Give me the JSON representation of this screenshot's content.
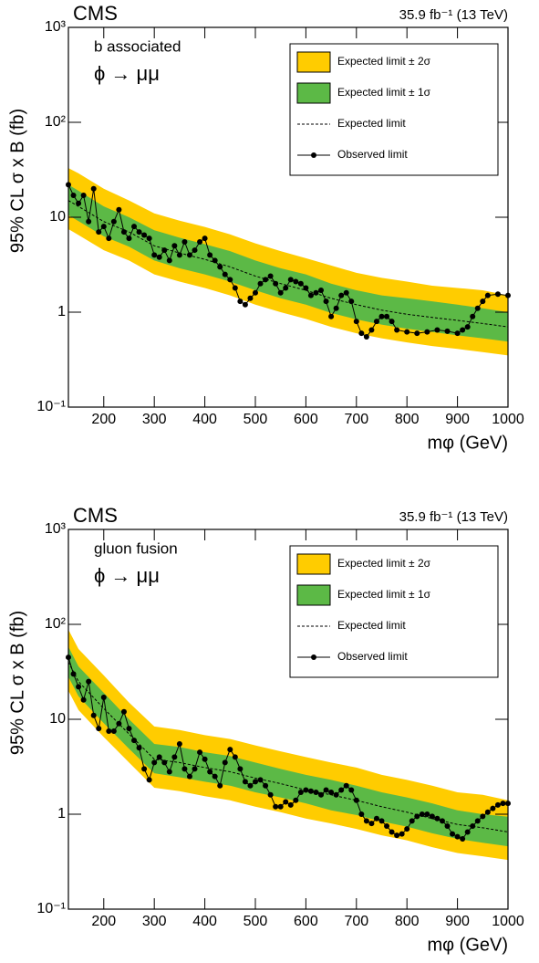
{
  "chart_data": [
    {
      "type": "line",
      "title": "CMS",
      "subtitle": "35.9 fb⁻¹ (13 TeV)",
      "annotations": [
        "b associated",
        "ϕ → μμ"
      ],
      "x_label": "mφ (GeV)",
      "y_label": "95% CL σ x B (fb)",
      "log_y": true,
      "grid": false,
      "legend": "top right",
      "xlim": [
        130,
        1000
      ],
      "xticks": [
        200,
        300,
        400,
        500,
        600,
        700,
        800,
        900,
        1000
      ],
      "ylim": [
        0.1,
        1000
      ],
      "yticks": [
        {
          "value": 0.1,
          "label": "10⁻¹"
        },
        1,
        10,
        {
          "value": 100,
          "label": "10²"
        },
        {
          "value": 1000,
          "label": "10³"
        }
      ],
      "x": [
        130,
        150,
        200,
        250,
        300,
        350,
        400,
        450,
        500,
        550,
        600,
        650,
        700,
        750,
        800,
        850,
        900,
        950,
        1000
      ],
      "series": [
        {
          "name": "Expected limit ± 2σ",
          "color": "#ffcc00",
          "lower": [
            7.5,
            6.5,
            4.5,
            3.5,
            2.5,
            2.1,
            1.8,
            1.5,
            1.2,
            1.0,
            0.85,
            0.7,
            0.6,
            0.53,
            0.48,
            0.44,
            0.41,
            0.38,
            0.35
          ],
          "upper": [
            33,
            29,
            20,
            15,
            11,
            9.2,
            7.9,
            6.6,
            5.3,
            4.4,
            3.7,
            3.1,
            2.6,
            2.3,
            2.1,
            1.9,
            1.8,
            1.7,
            1.5
          ]
        },
        {
          "name": "Expected limit ± 1σ",
          "color": "#5cb946",
          "lower": [
            10.5,
            9.1,
            6.3,
            4.9,
            3.5,
            2.9,
            2.5,
            2.1,
            1.7,
            1.4,
            1.2,
            0.98,
            0.84,
            0.74,
            0.67,
            0.62,
            0.57,
            0.53,
            0.49
          ],
          "upper": [
            22,
            19,
            13,
            10,
            7.3,
            6.1,
            5.2,
            4.4,
            3.5,
            2.9,
            2.5,
            2.0,
            1.7,
            1.5,
            1.4,
            1.3,
            1.2,
            1.1,
            1.0
          ]
        },
        {
          "name": "Expected limit",
          "color": "#000000",
          "style": "dashed",
          "values": [
            15,
            13,
            9,
            7,
            5,
            4.2,
            3.6,
            3,
            2.4,
            2,
            1.7,
            1.4,
            1.2,
            1.05,
            0.95,
            0.88,
            0.82,
            0.76,
            0.7
          ]
        },
        {
          "name": "Observed limit",
          "color": "#000000",
          "markers": true,
          "x": [
            130,
            140,
            150,
            160,
            170,
            180,
            190,
            200,
            210,
            220,
            230,
            240,
            250,
            260,
            270,
            280,
            290,
            300,
            310,
            320,
            330,
            340,
            350,
            360,
            370,
            380,
            390,
            400,
            410,
            420,
            430,
            440,
            450,
            460,
            470,
            480,
            490,
            500,
            510,
            520,
            530,
            540,
            550,
            560,
            570,
            580,
            590,
            600,
            610,
            620,
            630,
            640,
            650,
            660,
            670,
            680,
            690,
            700,
            710,
            720,
            730,
            740,
            750,
            760,
            770,
            780,
            800,
            820,
            840,
            860,
            880,
            900,
            910,
            920,
            930,
            940,
            950,
            960,
            980,
            1000
          ],
          "values": [
            22,
            17,
            14,
            17,
            9,
            20,
            7,
            8,
            6,
            9,
            12,
            7,
            6,
            8,
            7,
            6.5,
            6,
            4,
            3.8,
            4.5,
            3.5,
            5,
            4,
            5.5,
            4,
            4.5,
            5.5,
            6,
            4,
            3.5,
            3,
            2.5,
            2.2,
            1.8,
            1.3,
            1.2,
            1.4,
            1.6,
            2,
            2.2,
            2.4,
            2,
            1.6,
            1.8,
            2.2,
            2.1,
            2,
            1.8,
            1.5,
            1.6,
            1.7,
            1.3,
            0.9,
            1.1,
            1.5,
            1.6,
            1.3,
            0.8,
            0.6,
            0.55,
            0.65,
            0.8,
            0.9,
            0.9,
            0.8,
            0.65,
            0.62,
            0.6,
            0.62,
            0.65,
            0.63,
            0.6,
            0.65,
            0.7,
            0.9,
            1.1,
            1.3,
            1.5,
            1.55,
            1.5
          ]
        }
      ]
    },
    {
      "type": "line",
      "title": "CMS",
      "subtitle": "35.9 fb⁻¹ (13 TeV)",
      "annotations": [
        "gluon fusion",
        "ϕ → μμ"
      ],
      "x_label": "mφ (GeV)",
      "y_label": "95% CL σ x B (fb)",
      "log_y": true,
      "grid": false,
      "legend": "top right",
      "xlim": [
        130,
        1000
      ],
      "xticks": [
        200,
        300,
        400,
        500,
        600,
        700,
        800,
        900,
        1000
      ],
      "ylim": [
        0.1,
        1000
      ],
      "yticks": [
        {
          "value": 0.1,
          "label": "10⁻¹"
        },
        1,
        10,
        {
          "value": 100,
          "label": "10²"
        },
        {
          "value": 1000,
          "label": "10³"
        }
      ],
      "x": [
        130,
        150,
        200,
        250,
        300,
        350,
        400,
        450,
        500,
        550,
        600,
        650,
        700,
        750,
        800,
        850,
        900,
        950,
        1000
      ],
      "series": [
        {
          "name": "Expected limit ± 2σ",
          "color": "#ffcc00",
          "lower": [
            20,
            12.5,
            6.5,
            3.5,
            1.9,
            1.75,
            1.55,
            1.4,
            1.2,
            1.05,
            0.9,
            0.8,
            0.7,
            0.6,
            0.53,
            0.45,
            0.39,
            0.36,
            0.33
          ],
          "upper": [
            88,
            55,
            29,
            15,
            8.4,
            7.7,
            6.8,
            6.2,
            5.3,
            4.6,
            4.0,
            3.5,
            3.1,
            2.6,
            2.3,
            2.0,
            1.7,
            1.6,
            1.4
          ]
        },
        {
          "name": "Expected limit ± 1σ",
          "color": "#5cb946",
          "lower": [
            28,
            17.5,
            9.1,
            4.9,
            2.7,
            2.45,
            2.2,
            2.0,
            1.7,
            1.5,
            1.3,
            1.1,
            0.98,
            0.84,
            0.74,
            0.63,
            0.55,
            0.5,
            0.46
          ],
          "upper": [
            58,
            36,
            19,
            10,
            5.5,
            5.1,
            4.5,
            4.1,
            3.5,
            3.0,
            2.6,
            2.3,
            2.0,
            1.7,
            1.5,
            1.3,
            1.1,
            1.0,
            0.94
          ]
        },
        {
          "name": "Expected limit",
          "color": "#000000",
          "style": "dashed",
          "values": [
            40,
            25,
            13,
            7,
            3.8,
            3.5,
            3.1,
            2.8,
            2.4,
            2.1,
            1.8,
            1.6,
            1.4,
            1.2,
            1.05,
            0.9,
            0.78,
            0.72,
            0.65
          ]
        },
        {
          "name": "Observed limit",
          "color": "#000000",
          "markers": true,
          "x": [
            130,
            140,
            150,
            160,
            170,
            180,
            190,
            200,
            210,
            220,
            230,
            240,
            250,
            260,
            270,
            280,
            290,
            300,
            310,
            320,
            330,
            340,
            350,
            360,
            370,
            380,
            390,
            400,
            410,
            420,
            430,
            440,
            450,
            460,
            470,
            480,
            490,
            500,
            510,
            520,
            530,
            540,
            550,
            560,
            570,
            580,
            590,
            600,
            610,
            620,
            630,
            640,
            650,
            660,
            670,
            680,
            690,
            700,
            710,
            720,
            730,
            740,
            750,
            760,
            770,
            780,
            790,
            800,
            810,
            820,
            830,
            840,
            850,
            860,
            870,
            880,
            890,
            900,
            910,
            920,
            930,
            940,
            950,
            960,
            970,
            980,
            990,
            1000
          ],
          "values": [
            45,
            30,
            22,
            16,
            25,
            11,
            8,
            17,
            7.5,
            7.5,
            9,
            12,
            8,
            6,
            5,
            3,
            2.3,
            3.5,
            4,
            3.5,
            2.8,
            4,
            5.5,
            3,
            2.5,
            3,
            4.5,
            3.8,
            2.8,
            2.5,
            2,
            3.5,
            4.8,
            4,
            3,
            2.2,
            2,
            2.2,
            2.3,
            2,
            1.6,
            1.2,
            1.2,
            1.35,
            1.25,
            1.4,
            1.7,
            1.8,
            1.75,
            1.7,
            1.6,
            1.8,
            1.7,
            1.6,
            1.8,
            2,
            1.8,
            1.4,
            1,
            0.85,
            0.8,
            0.9,
            0.85,
            0.75,
            0.65,
            0.6,
            0.62,
            0.7,
            0.85,
            0.95,
            1,
            1,
            0.95,
            0.9,
            0.85,
            0.75,
            0.62,
            0.58,
            0.55,
            0.65,
            0.75,
            0.85,
            0.95,
            1.05,
            1.15,
            1.25,
            1.3,
            1.3
          ]
        }
      ]
    }
  ]
}
